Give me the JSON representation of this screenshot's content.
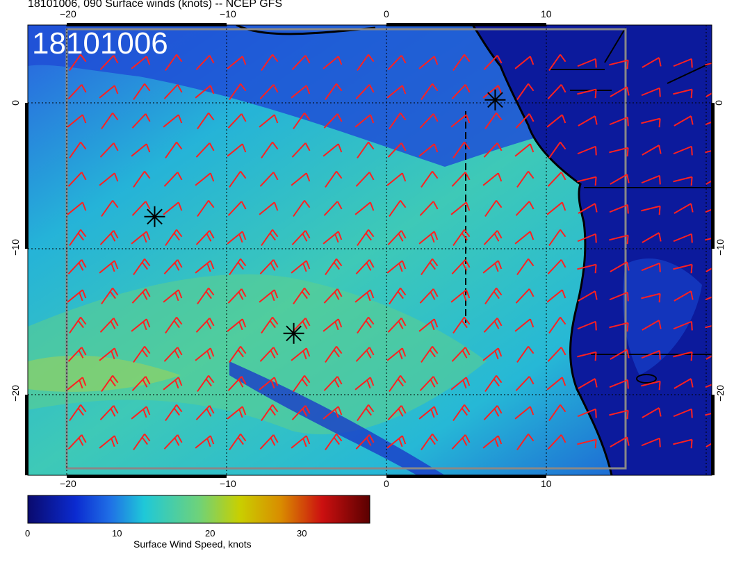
{
  "title": "18101006, 090 Surface winds (knots) -- NCEP GFS",
  "stamp": "18101006",
  "axes": {
    "x_ticks": [
      "−20",
      "−10",
      "0",
      "10"
    ],
    "y_ticks": [
      "0",
      "−10",
      "−20"
    ],
    "lon_range": [
      -22.5,
      20.5
    ],
    "lat_range": [
      -25.5,
      5
    ]
  },
  "colorbar": {
    "title": "Surface Wind Speed, knots",
    "ticks": [
      "0",
      "10",
      "20",
      "30"
    ],
    "range": [
      0,
      37
    ],
    "colors": [
      "#0a0a6e",
      "#0b2bd0",
      "#1f6fe6",
      "#1fc8d8",
      "#6ed27a",
      "#c9cf00",
      "#d98c00",
      "#cc1010",
      "#5a0000"
    ]
  },
  "markers": [
    {
      "name": "storm-marker-1",
      "lon": -14.5,
      "lat": -7.8
    },
    {
      "name": "storm-marker-2",
      "lon": -5.8,
      "lat": -15.8
    },
    {
      "name": "storm-marker-3",
      "lon": 6.8,
      "lat": 0.2
    }
  ],
  "barb_color": "#ff2020"
}
